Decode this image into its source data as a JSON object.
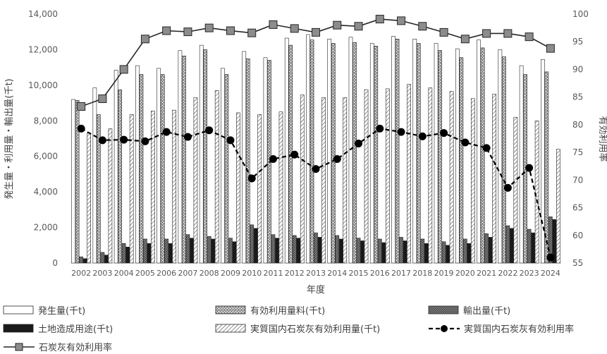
{
  "chart_data": {
    "type": "bar",
    "xlabel": "年度",
    "ylabel": "発生量・利用量・輸出量(千t)",
    "y2label": "有効利用率",
    "ylim": [
      0,
      14000
    ],
    "y2lim": [
      55,
      100
    ],
    "yticks": [
      "0",
      "2,000",
      "4,000",
      "6,000",
      "8,000",
      "10,000",
      "12,000",
      "14,000"
    ],
    "y2ticks": [
      "55",
      "60",
      "65",
      "70",
      "75",
      "80",
      "85",
      "90",
      "95",
      "100"
    ],
    "categories": [
      "2002",
      "2003",
      "2004",
      "2005",
      "2006",
      "2007",
      "2008",
      "2009",
      "2010",
      "2011",
      "2012",
      "2013",
      "2014",
      "2015",
      "2016",
      "2017",
      "2018",
      "2019",
      "2020",
      "2021",
      "2022",
      "2023",
      "2024"
    ],
    "series": [
      {
        "name": "発生量(千t)",
        "kind": "bar",
        "pattern": "plain",
        "values": [
          9200,
          9850,
          10850,
          11100,
          10950,
          11950,
          12250,
          10950,
          11900,
          11550,
          12650,
          12850,
          12600,
          12700,
          12350,
          12750,
          12600,
          12350,
          12050,
          12550,
          12000,
          11100,
          11450
        ]
      },
      {
        "name": "有効利用量料(千t)",
        "kind": "bar",
        "pattern": "brick",
        "values": [
          9150,
          8350,
          9750,
          10600,
          10600,
          11650,
          12000,
          10600,
          11500,
          11400,
          12250,
          12550,
          12350,
          12400,
          12200,
          12600,
          12350,
          11950,
          11550,
          12100,
          11600,
          10600,
          10750
        ]
      },
      {
        "name": "輸出量(千t)",
        "kind": "bar",
        "pattern": "dense",
        "values": [
          350,
          600,
          1100,
          1350,
          1350,
          1600,
          1500,
          1400,
          2150,
          1600,
          1550,
          1700,
          1550,
          1400,
          1350,
          1450,
          1350,
          1200,
          1350,
          1650,
          2100,
          1900,
          2600
        ]
      },
      {
        "name": "土地造成用途(千t)",
        "kind": "bar",
        "pattern": "solid",
        "values": [
          250,
          450,
          900,
          1100,
          1100,
          1400,
          1350,
          1200,
          1950,
          1400,
          1400,
          1450,
          1350,
          1250,
          1150,
          1250,
          1100,
          1000,
          1100,
          1450,
          1950,
          1700,
          2450
        ]
      },
      {
        "name": "実質国内石炭灰有効利用量(千t)",
        "kind": "bar",
        "pattern": "diag",
        "values": [
          7300,
          7550,
          8350,
          8550,
          8600,
          9300,
          9700,
          8450,
          8350,
          8500,
          9450,
          9300,
          9300,
          9750,
          9800,
          10050,
          9850,
          9650,
          9250,
          9500,
          8200,
          8000,
          6400
        ]
      },
      {
        "name": "実質国内石炭灰有効利用率",
        "kind": "line",
        "axis": "right",
        "style": "dashed",
        "values": [
          79.3,
          77.2,
          77.3,
          77.0,
          78.7,
          77.8,
          79.0,
          77.2,
          70.3,
          73.8,
          74.6,
          72.0,
          73.8,
          76.6,
          79.3,
          78.7,
          77.9,
          78.5,
          76.8,
          75.8,
          68.6,
          72.2,
          56.0
        ]
      },
      {
        "name": "石炭灰有効利用率",
        "kind": "line",
        "axis": "right",
        "style": "solid",
        "values": [
          83.3,
          84.7,
          90.0,
          95.5,
          97.0,
          96.8,
          97.5,
          97.0,
          96.6,
          98.1,
          97.4,
          96.7,
          98.0,
          97.8,
          99.1,
          98.8,
          97.8,
          96.7,
          95.5,
          96.5,
          96.5,
          95.9,
          93.8
        ]
      }
    ],
    "legend": [
      "発生量(千t)",
      "有効利用量料(千t)",
      "輸出量(千t)",
      "土地造成用途(千t)",
      "実質国内石炭灰有効利用量(千t)",
      "実質国内石炭灰有効利用率",
      "石炭灰有効利用率"
    ],
    "legend_position": "bottom",
    "grid": false
  }
}
